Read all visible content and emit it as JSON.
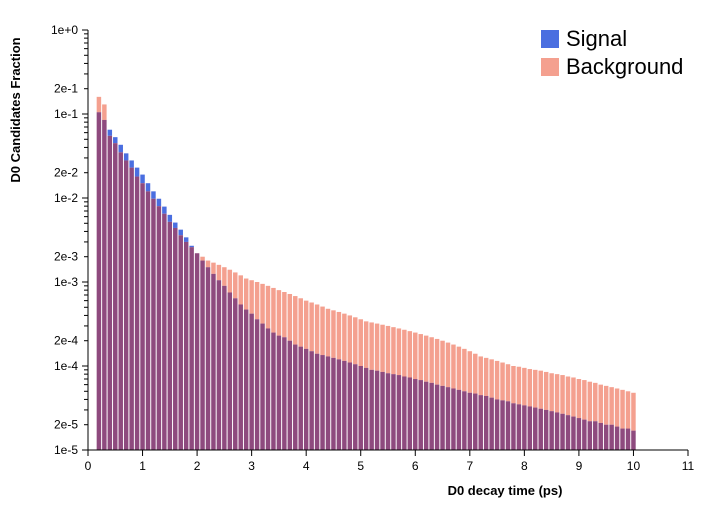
{
  "chart_data": {
    "type": "bar",
    "xlabel": "D0 decay time (ps)",
    "ylabel": "D0 Candidates Fraction",
    "xlim": [
      0,
      11
    ],
    "ylim": [
      1e-05,
      1
    ],
    "yscale": "log",
    "bin_width": 0.1,
    "x_ticks": [
      {
        "value": 0,
        "label": "0"
      },
      {
        "value": 1,
        "label": "1"
      },
      {
        "value": 2,
        "label": "2"
      },
      {
        "value": 3,
        "label": "3"
      },
      {
        "value": 4,
        "label": "4"
      },
      {
        "value": 5,
        "label": "5"
      },
      {
        "value": 6,
        "label": "6"
      },
      {
        "value": 7,
        "label": "7"
      },
      {
        "value": 8,
        "label": "8"
      },
      {
        "value": 9,
        "label": "9"
      },
      {
        "value": 10,
        "label": "10"
      },
      {
        "value": 11,
        "label": "11"
      }
    ],
    "y_ticks": [
      {
        "value": 1,
        "label": "1e+0"
      },
      {
        "value": 0.2,
        "label": "2e-1"
      },
      {
        "value": 0.1,
        "label": "1e-1"
      },
      {
        "value": 0.02,
        "label": "2e-2"
      },
      {
        "value": 0.01,
        "label": "1e-2"
      },
      {
        "value": 0.002,
        "label": "2e-3"
      },
      {
        "value": 0.001,
        "label": "1e-3"
      },
      {
        "value": 0.0002,
        "label": "2e-4"
      },
      {
        "value": 0.0001,
        "label": "1e-4"
      },
      {
        "value": 2e-05,
        "label": "2e-5"
      },
      {
        "value": 1e-05,
        "label": "1e-5"
      }
    ],
    "legend_position": "top-right",
    "x": [
      0.2,
      0.3,
      0.4,
      0.5,
      0.6,
      0.7,
      0.8,
      0.9,
      1.0,
      1.1,
      1.2,
      1.3,
      1.4,
      1.5,
      1.6,
      1.7,
      1.8,
      1.9,
      2.0,
      2.1,
      2.2,
      2.3,
      2.4,
      2.5,
      2.6,
      2.7,
      2.8,
      2.9,
      3.0,
      3.1,
      3.2,
      3.3,
      3.4,
      3.5,
      3.6,
      3.7,
      3.8,
      3.9,
      4.0,
      4.1,
      4.2,
      4.3,
      4.4,
      4.5,
      4.6,
      4.7,
      4.8,
      4.9,
      5.0,
      5.1,
      5.2,
      5.3,
      5.4,
      5.5,
      5.6,
      5.7,
      5.8,
      5.9,
      6.0,
      6.1,
      6.2,
      6.3,
      6.4,
      6.5,
      6.6,
      6.7,
      6.8,
      6.9,
      7.0,
      7.1,
      7.2,
      7.3,
      7.4,
      7.5,
      7.6,
      7.7,
      7.8,
      7.9,
      8.0,
      8.1,
      8.2,
      8.3,
      8.4,
      8.5,
      8.6,
      8.7,
      8.8,
      8.9,
      9.0,
      9.1,
      9.2,
      9.3,
      9.4,
      9.5,
      9.6,
      9.7,
      9.8,
      9.9,
      10.0
    ],
    "series": [
      {
        "name": "Signal",
        "color": "#4169e1",
        "values": [
          0.105,
          0.085,
          0.065,
          0.053,
          0.043,
          0.034,
          0.028,
          0.023,
          0.019,
          0.015,
          0.012,
          0.0098,
          0.0079,
          0.0063,
          0.0051,
          0.0042,
          0.0034,
          0.0027,
          0.0022,
          0.0018,
          0.0015,
          0.00125,
          0.00105,
          0.0009,
          0.00075,
          0.00064,
          0.00054,
          0.00047,
          0.00042,
          0.00036,
          0.00032,
          0.00028,
          0.00025,
          0.00023,
          0.00022,
          0.0002,
          0.00018,
          0.00017,
          0.00016,
          0.00015,
          0.00014,
          0.000135,
          0.00013,
          0.000125,
          0.00012,
          0.000115,
          0.00011,
          0.000105,
          0.0001,
          9.5e-05,
          9e-05,
          8.8e-05,
          8.5e-05,
          8.2e-05,
          8e-05,
          7.8e-05,
          7.5e-05,
          7.3e-05,
          7e-05,
          6.8e-05,
          6.5e-05,
          6.3e-05,
          6e-05,
          5.8e-05,
          5.6e-05,
          5.4e-05,
          5.2e-05,
          5e-05,
          4.8e-05,
          4.7e-05,
          4.5e-05,
          4.4e-05,
          4.2e-05,
          4e-05,
          3.9e-05,
          3.8e-05,
          3.6e-05,
          3.5e-05,
          3.4e-05,
          3.3e-05,
          3.2e-05,
          3.1e-05,
          3e-05,
          2.9e-05,
          2.8e-05,
          2.7e-05,
          2.6e-05,
          2.5e-05,
          2.4e-05,
          2.3e-05,
          2.2e-05,
          2.2e-05,
          2.1e-05,
          2e-05,
          2e-05,
          1.9e-05,
          1.8e-05,
          1.8e-05,
          1.7e-05
        ]
      },
      {
        "name": "Background",
        "color": "#f08070",
        "values": [
          0.16,
          0.13,
          0.055,
          0.045,
          0.035,
          0.028,
          0.023,
          0.018,
          0.015,
          0.012,
          0.0098,
          0.008,
          0.0065,
          0.0052,
          0.0044,
          0.0036,
          0.003,
          0.0026,
          0.0022,
          0.002,
          0.0018,
          0.0017,
          0.0016,
          0.0015,
          0.0014,
          0.0013,
          0.0012,
          0.0011,
          0.00105,
          0.001,
          0.00095,
          0.0009,
          0.00085,
          0.0008,
          0.00076,
          0.00072,
          0.00068,
          0.00064,
          0.0006,
          0.00057,
          0.00054,
          0.00051,
          0.00048,
          0.00046,
          0.00044,
          0.00042,
          0.0004,
          0.00038,
          0.00036,
          0.00034,
          0.00033,
          0.00032,
          0.00031,
          0.0003,
          0.00029,
          0.00028,
          0.00027,
          0.00026,
          0.00025,
          0.00024,
          0.00023,
          0.00022,
          0.00021,
          0.0002,
          0.00019,
          0.00018,
          0.00017,
          0.00016,
          0.00015,
          0.00014,
          0.00013,
          0.000125,
          0.00012,
          0.000115,
          0.00011,
          0.000105,
          0.0001,
          9.8e-05,
          9.5e-05,
          9.2e-05,
          9e-05,
          8.8e-05,
          8.5e-05,
          8.2e-05,
          8e-05,
          7.8e-05,
          7.5e-05,
          7.3e-05,
          7e-05,
          6.8e-05,
          6.5e-05,
          6.3e-05,
          6e-05,
          5.8e-05,
          5.6e-05,
          5.4e-05,
          5.2e-05,
          5e-05,
          4.8e-05
        ]
      }
    ]
  }
}
